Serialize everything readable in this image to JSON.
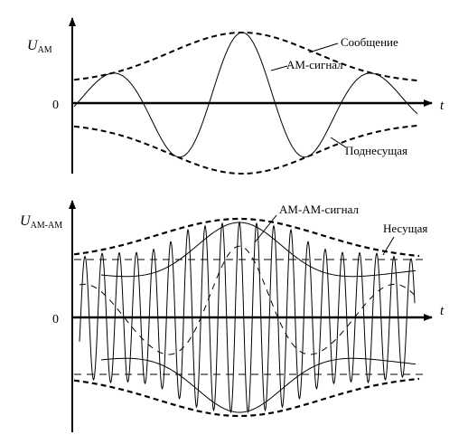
{
  "top_panel": {
    "y_axis_label_main": "U",
    "y_axis_label_sub": "AM",
    "x_axis_label": "t",
    "zero_label": "0",
    "labels": {
      "message": "Сообщение",
      "am_signal": "АМ-сигнал",
      "subcarrier": "Поднесущая"
    }
  },
  "bottom_panel": {
    "y_axis_label_main": "U",
    "y_axis_label_sub": "AM-AM",
    "x_axis_label": "t",
    "zero_label": "0",
    "labels": {
      "am_am_signal": "АМ-АМ-сигнал",
      "carrier": "Несущая"
    }
  },
  "colors": {
    "ink": "#000000",
    "background": "#ffffff"
  }
}
